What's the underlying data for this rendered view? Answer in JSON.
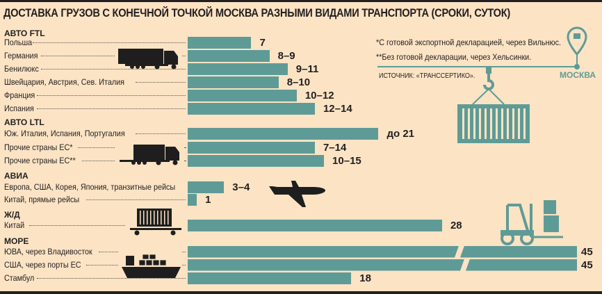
{
  "title": "ДОСТАВКА ГРУЗОВ С КОНЕЧНОЙ ТОЧКОЙ МОСКВА РАЗНЫМИ ВИДАМИ ТРАНСПОРТА (СРОКИ, СУТОК)",
  "notes": {
    "footnote1": "*С готовой экспортной декларацией, через Вильнюс.",
    "footnote2": "**Без готовой декларации, через Хельсинки.",
    "source": "ИСТОЧНИК: «ТРАНССЕРТИКО».",
    "destination": "МОСКВА"
  },
  "colors": {
    "bar": "#5f9b96",
    "background": "#fbe3c4",
    "text": "#231f20"
  },
  "icons": [
    "truck-icon",
    "truck-icon",
    "airplane-icon",
    "rail-car-icon",
    "ship-icon",
    "forklift-icon",
    "container-crane-icon",
    "map-pin-icon"
  ],
  "chart_data": {
    "type": "bar",
    "orientation": "horizontal",
    "title": "ДОСТАВКА ГРУЗОВ С КОНЕЧНОЙ ТОЧКОЙ МОСКВА РАЗНЫМИ ВИДАМИ ТРАНСПОРТА (СРОКИ, СУТОК)",
    "unit": "суток",
    "axis_break": "bars of 45 are drawn with a break",
    "groups": [
      {
        "name": "АВТО FTL",
        "rows": [
          {
            "label": "Польша",
            "min": 7,
            "max": 7,
            "text": "7"
          },
          {
            "label": "Германия",
            "min": 8,
            "max": 9,
            "text": "8–9"
          },
          {
            "label": "Бенилюкс",
            "min": 9,
            "max": 11,
            "text": "9–11"
          },
          {
            "label": "Швейцария, Австрия, Сев. Италия",
            "min": 8,
            "max": 10,
            "text": "8–10"
          },
          {
            "label": "Франция",
            "min": 10,
            "max": 12,
            "text": "10–12"
          },
          {
            "label": "Испания",
            "min": 12,
            "max": 14,
            "text": "12–14"
          }
        ]
      },
      {
        "name": "АВТО LTL",
        "rows": [
          {
            "label": "Юж. Италия, Испания, Португалия",
            "min": null,
            "max": 21,
            "text": "до 21"
          },
          {
            "label": "Прочие страны ЕС*",
            "min": 7,
            "max": 14,
            "text": "7–14"
          },
          {
            "label": "Прочие страны ЕС**",
            "min": 10,
            "max": 15,
            "text": "10–15"
          }
        ]
      },
      {
        "name": "АВИА",
        "rows": [
          {
            "label": "Европа, США, Корея, Япония, транзитные рейсы",
            "min": 3,
            "max": 4,
            "text": "3–4"
          },
          {
            "label": "Китай, прямые рейсы",
            "min": 1,
            "max": 1,
            "text": "1"
          }
        ]
      },
      {
        "name": "Ж/Д",
        "rows": [
          {
            "label": "Китай",
            "min": 28,
            "max": 28,
            "text": "28"
          }
        ]
      },
      {
        "name": "МОРЕ",
        "rows": [
          {
            "label": "ЮВА, через Владивосток",
            "min": 45,
            "max": 45,
            "text": "45"
          },
          {
            "label": "США, через порты ЕС",
            "min": 45,
            "max": 45,
            "text": "45"
          },
          {
            "label": "Стамбул",
            "min": 18,
            "max": 18,
            "text": "18"
          }
        ]
      }
    ]
  }
}
